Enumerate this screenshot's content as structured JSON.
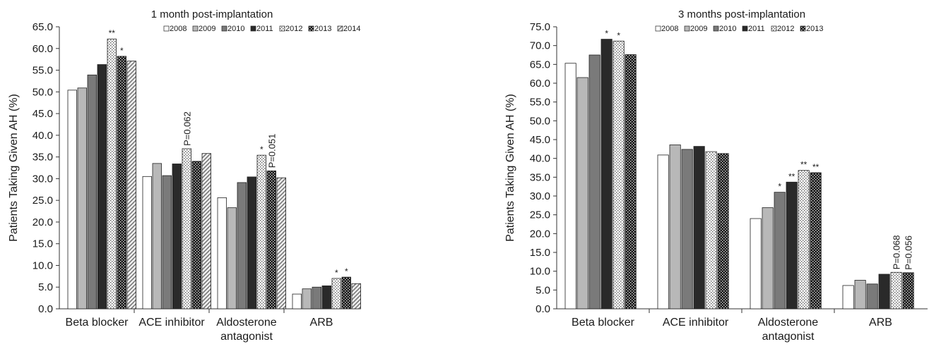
{
  "colors": {
    "2008": "#ffffff",
    "2009": "#b8b8b8",
    "2010": "#7a7a7a",
    "2011": "#2a2a2a",
    "2012": "dots-light",
    "2013": "dots-dark",
    "2014": "hatch"
  },
  "chart_data": [
    {
      "type": "bar",
      "title": "1 month post-implantation",
      "ylabel": "Patients Taking Given AH (%)",
      "xlabel": "",
      "ylim": [
        0,
        65
      ],
      "yticks": [
        "0.0",
        "5.0",
        "10.0",
        "15.0",
        "20.0",
        "25.0",
        "30.0",
        "35.0",
        "40.0",
        "45.0",
        "50.0",
        "55.0",
        "60.0",
        "65.0"
      ],
      "categories": [
        [
          "Beta blocker"
        ],
        [
          "ACE inhibitor"
        ],
        [
          "Aldosterone",
          "antagonist"
        ],
        [
          "ARB"
        ]
      ],
      "legend_placement": "top-center",
      "series": [
        {
          "name": "2008",
          "values": [
            50.4,
            30.5,
            25.6,
            3.4
          ]
        },
        {
          "name": "2009",
          "values": [
            50.9,
            33.5,
            23.3,
            4.6
          ]
        },
        {
          "name": "2010",
          "values": [
            53.9,
            30.7,
            29.1,
            5.0
          ]
        },
        {
          "name": "2011",
          "values": [
            56.3,
            33.4,
            30.4,
            5.3
          ]
        },
        {
          "name": "2012",
          "values": [
            62.2,
            36.9,
            35.4,
            7.0
          ]
        },
        {
          "name": "2013",
          "values": [
            58.2,
            34.0,
            31.8,
            7.3
          ]
        },
        {
          "name": "2014",
          "values": [
            57.1,
            35.8,
            30.2,
            5.8
          ]
        }
      ],
      "annotations": [
        {
          "category": 0,
          "series": 4,
          "text": "**",
          "rotated": false
        },
        {
          "category": 0,
          "series": 5,
          "text": "*",
          "rotated": false
        },
        {
          "category": 1,
          "series": 4,
          "text": "P=0.062",
          "rotated": true
        },
        {
          "category": 2,
          "series": 4,
          "text": "*",
          "rotated": false
        },
        {
          "category": 2,
          "series": 5,
          "text": "P=0.051",
          "rotated": true
        },
        {
          "category": 3,
          "series": 4,
          "text": "*",
          "rotated": false
        },
        {
          "category": 3,
          "series": 5,
          "text": "*",
          "rotated": false
        }
      ]
    },
    {
      "type": "bar",
      "title": "3 months post-implantation",
      "ylabel": "Patients Taking Given AH (%)",
      "xlabel": "",
      "ylim": [
        0,
        75
      ],
      "yticks": [
        "0.0",
        "5.0",
        "10.0",
        "15.0",
        "20.0",
        "25.0",
        "30.0",
        "35.0",
        "40.0",
        "45.0",
        "50.0",
        "55.0",
        "60.0",
        "65.0",
        "70.0",
        "75.0"
      ],
      "categories": [
        [
          "Beta blocker"
        ],
        [
          "ACE inhibitor"
        ],
        [
          "Aldosterone",
          "antagonist"
        ],
        [
          "ARB"
        ]
      ],
      "legend_placement": "top-center",
      "series": [
        {
          "name": "2008",
          "values": [
            65.3,
            40.9,
            24.0,
            6.2
          ]
        },
        {
          "name": "2009",
          "values": [
            61.5,
            43.6,
            26.9,
            7.6
          ]
        },
        {
          "name": "2010",
          "values": [
            67.5,
            42.4,
            31.0,
            6.6
          ]
        },
        {
          "name": "2011",
          "values": [
            71.7,
            43.2,
            33.7,
            9.2
          ]
        },
        {
          "name": "2012",
          "values": [
            71.2,
            41.8,
            36.8,
            9.7
          ]
        },
        {
          "name": "2013",
          "values": [
            67.6,
            41.3,
            36.2,
            9.6
          ]
        }
      ],
      "annotations": [
        {
          "category": 0,
          "series": 3,
          "text": "*",
          "rotated": false
        },
        {
          "category": 0,
          "series": 4,
          "text": "*",
          "rotated": false
        },
        {
          "category": 2,
          "series": 2,
          "text": "*",
          "rotated": false
        },
        {
          "category": 2,
          "series": 3,
          "text": "**",
          "rotated": false
        },
        {
          "category": 2,
          "series": 4,
          "text": "**",
          "rotated": false
        },
        {
          "category": 2,
          "series": 5,
          "text": "**",
          "rotated": false
        },
        {
          "category": 3,
          "series": 4,
          "text": "P=0.068",
          "rotated": true
        },
        {
          "category": 3,
          "series": 5,
          "text": "P=0.056",
          "rotated": true
        }
      ]
    }
  ]
}
